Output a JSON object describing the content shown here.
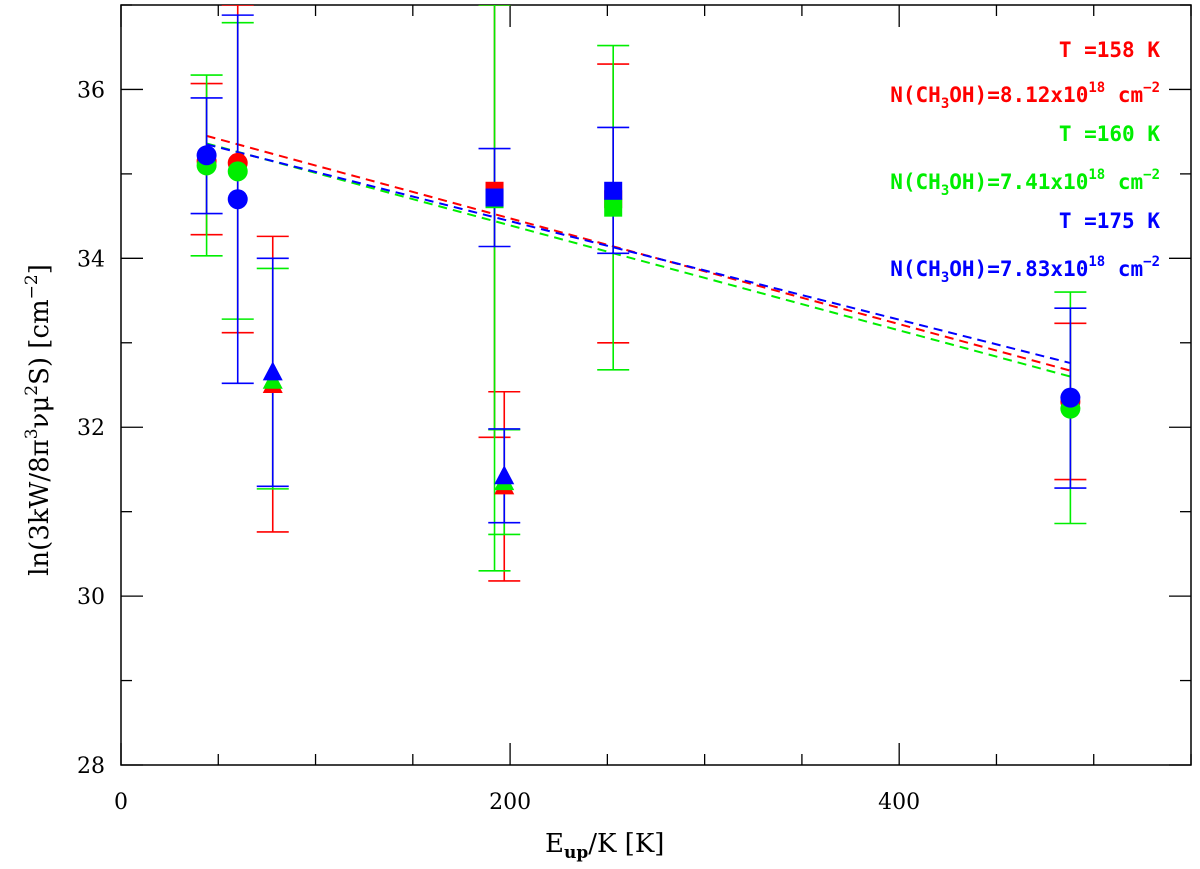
{
  "chart_data": {
    "type": "scatter",
    "title": "",
    "xlabel": {
      "main": "E",
      "sub": "up",
      "rest": "/K  [K]"
    },
    "ylabel": {
      "pre": "ln(3kW/8π",
      "sup1": "3",
      "mid": "νμ",
      "sup2": "2",
      "post": "S)  [cm",
      "sup3": "−2",
      "close": "]"
    },
    "xlim": [
      0,
      550
    ],
    "ylim": [
      28,
      37
    ],
    "x_ticks": [
      0,
      200,
      400
    ],
    "y_ticks": [
      28,
      30,
      32,
      34,
      36
    ],
    "x_minor_step": 50,
    "y_minor_step": 1,
    "series": [
      {
        "name": "T=158 K",
        "color": "#ff0000",
        "points": [
          {
            "x": 44,
            "y": 35.15,
            "lo": 34.28,
            "hi": 36.07,
            "marker": "circle"
          },
          {
            "x": 60,
            "y": 35.13,
            "lo": 33.12,
            "hi": 37.0,
            "marker": "circle"
          },
          {
            "x": 78,
            "y": 32.5,
            "lo": 30.76,
            "hi": 34.26,
            "marker": "triangle"
          },
          {
            "x": 192,
            "y": 34.8,
            "lo": 31.88,
            "hi": 37.0,
            "marker": "square"
          },
          {
            "x": 197,
            "y": 31.3,
            "lo": 30.18,
            "hi": 32.42,
            "marker": "triangle"
          },
          {
            "x": 253,
            "y": 34.7,
            "lo": 33.0,
            "hi": 36.3,
            "marker": "square"
          },
          {
            "x": 488,
            "y": 32.3,
            "lo": 31.38,
            "hi": 33.23,
            "marker": "circle"
          }
        ],
        "fit": {
          "x": [
            44,
            488
          ],
          "y": [
            35.45,
            32.67
          ]
        }
      },
      {
        "name": "T=160 K",
        "color": "#00ee00",
        "points": [
          {
            "x": 44,
            "y": 35.1,
            "lo": 34.03,
            "hi": 36.17,
            "marker": "circle"
          },
          {
            "x": 60,
            "y": 35.03,
            "lo": 33.28,
            "hi": 36.79,
            "marker": "circle"
          },
          {
            "x": 78,
            "y": 32.55,
            "lo": 31.27,
            "hi": 33.88,
            "marker": "triangle"
          },
          {
            "x": 192,
            "y": 34.7,
            "lo": 30.3,
            "hi": 37.0,
            "marker": "square"
          },
          {
            "x": 197,
            "y": 31.35,
            "lo": 30.73,
            "hi": 31.97,
            "marker": "triangle"
          },
          {
            "x": 253,
            "y": 34.6,
            "lo": 32.68,
            "hi": 36.52,
            "marker": "square"
          },
          {
            "x": 488,
            "y": 32.22,
            "lo": 30.86,
            "hi": 33.6,
            "marker": "circle"
          }
        ],
        "fit": {
          "x": [
            44,
            488
          ],
          "y": [
            35.36,
            32.6
          ]
        }
      },
      {
        "name": "T=175 K",
        "color": "#0000ff",
        "points": [
          {
            "x": 44,
            "y": 35.22,
            "lo": 34.53,
            "hi": 35.9,
            "marker": "circle"
          },
          {
            "x": 60,
            "y": 34.7,
            "lo": 32.52,
            "hi": 36.88,
            "marker": "circle"
          },
          {
            "x": 78,
            "y": 32.65,
            "lo": 31.3,
            "hi": 34.0,
            "marker": "triangle"
          },
          {
            "x": 192,
            "y": 34.72,
            "lo": 34.14,
            "hi": 35.3,
            "marker": "square"
          },
          {
            "x": 197,
            "y": 31.42,
            "lo": 30.87,
            "hi": 31.98,
            "marker": "triangle"
          },
          {
            "x": 253,
            "y": 34.8,
            "lo": 34.06,
            "hi": 35.55,
            "marker": "square"
          },
          {
            "x": 488,
            "y": 32.35,
            "lo": 31.28,
            "hi": 33.41,
            "marker": "circle"
          }
        ],
        "fit": {
          "x": [
            44,
            488
          ],
          "y": [
            35.35,
            32.76
          ]
        }
      }
    ],
    "legend": [
      {
        "color": "#ff0000",
        "temp": "T =158 K",
        "n_pre": "N(CH",
        "n_sub": "3",
        "n_mid": "OH)=8.12x10",
        "n_sup": "18",
        "n_unit": " cm",
        "n_unit_sup": "−2"
      },
      {
        "color": "#00ee00",
        "temp": "T =160 K",
        "n_pre": "N(CH",
        "n_sub": "3",
        "n_mid": "OH)=7.41x10",
        "n_sup": "18",
        "n_unit": " cm",
        "n_unit_sup": "−2"
      },
      {
        "color": "#0000ff",
        "temp": "T =175 K",
        "n_pre": "N(CH",
        "n_sub": "3",
        "n_mid": "OH)=7.83x10",
        "n_sup": "18",
        "n_unit": " cm",
        "n_unit_sup": "−2"
      }
    ],
    "legend_position": "top-right"
  }
}
